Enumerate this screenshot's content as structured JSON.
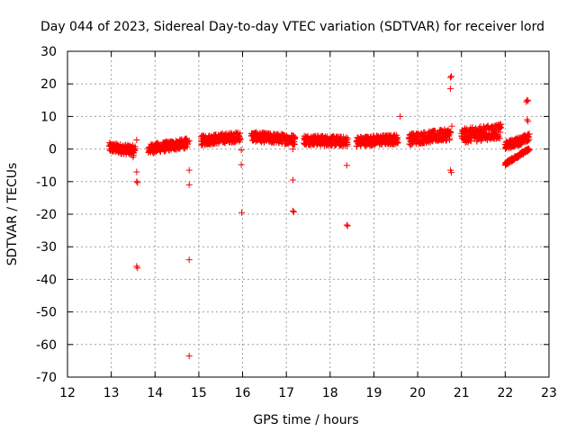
{
  "chart_data": {
    "type": "scatter",
    "title": "Day 044 of 2023, Sidereal Day-to-day VTEC variation (SDTVAR) for receiver lord",
    "xlabel": "GPS time / hours",
    "ylabel": "SDTVAR / TECUs",
    "xlim": [
      12,
      23
    ],
    "ylim": [
      -70,
      30
    ],
    "xticks": [
      12,
      13,
      14,
      15,
      16,
      17,
      18,
      19,
      20,
      21,
      22,
      23
    ],
    "yticks": [
      -70,
      -60,
      -50,
      -40,
      -30,
      -20,
      -10,
      0,
      10,
      20,
      30
    ],
    "grid": true,
    "marker": "+",
    "color": "#ff0000",
    "segments": [
      {
        "x_start": 12.95,
        "x_end": 13.55,
        "y_start": 0.5,
        "y_end": -0.5,
        "spread": 3.0
      },
      {
        "x_start": 13.85,
        "x_end": 14.75,
        "y_start": 0.0,
        "y_end": 1.8,
        "spread": 3.0
      },
      {
        "x_start": 15.05,
        "x_end": 15.95,
        "y_start": 2.6,
        "y_end": 3.8,
        "spread": 3.0
      },
      {
        "x_start": 16.2,
        "x_end": 17.2,
        "y_start": 3.8,
        "y_end": 2.8,
        "spread": 3.0
      },
      {
        "x_start": 17.4,
        "x_end": 18.4,
        "y_start": 2.8,
        "y_end": 2.3,
        "spread": 3.0
      },
      {
        "x_start": 18.6,
        "x_end": 19.55,
        "y_start": 2.3,
        "y_end": 3.0,
        "spread": 3.0
      },
      {
        "x_start": 19.8,
        "x_end": 20.75,
        "y_start": 3.0,
        "y_end": 4.5,
        "spread": 3.5
      },
      {
        "x_start": 21.0,
        "x_end": 21.9,
        "y_start": 4.0,
        "y_end": 5.5,
        "spread": 4.5
      },
      {
        "x_start": 22.0,
        "x_end": 22.55,
        "y_start": 1.0,
        "y_end": 3.5,
        "spread": 2.5
      },
      {
        "x_start": 22.0,
        "x_end": 22.55,
        "y_start": -4.5,
        "y_end": 0.0,
        "spread": 1.0
      }
    ],
    "outliers": [
      {
        "x": 13.58,
        "y": 2.8
      },
      {
        "x": 13.58,
        "y": -7.0
      },
      {
        "x": 13.58,
        "y": -10.0
      },
      {
        "x": 13.6,
        "y": -10.3
      },
      {
        "x": 13.58,
        "y": -36.0
      },
      {
        "x": 13.6,
        "y": -36.5
      },
      {
        "x": 13.5,
        "y": -2.5
      },
      {
        "x": 14.78,
        "y": 2.5
      },
      {
        "x": 14.78,
        "y": -6.5
      },
      {
        "x": 14.78,
        "y": -11.0
      },
      {
        "x": 14.78,
        "y": -34.0
      },
      {
        "x": 14.78,
        "y": -63.5
      },
      {
        "x": 15.97,
        "y": -0.3
      },
      {
        "x": 15.97,
        "y": -4.8
      },
      {
        "x": 15.98,
        "y": -19.5
      },
      {
        "x": 17.15,
        "y": 0.0
      },
      {
        "x": 17.15,
        "y": -9.5
      },
      {
        "x": 17.15,
        "y": -19.0
      },
      {
        "x": 17.17,
        "y": -19.3
      },
      {
        "x": 18.38,
        "y": -5.0
      },
      {
        "x": 18.38,
        "y": -23.3
      },
      {
        "x": 18.4,
        "y": -23.6
      },
      {
        "x": 19.6,
        "y": 10.0
      },
      {
        "x": 20.75,
        "y": 22.0
      },
      {
        "x": 20.77,
        "y": 22.3
      },
      {
        "x": 20.75,
        "y": 18.5
      },
      {
        "x": 20.78,
        "y": 7.0
      },
      {
        "x": 20.75,
        "y": -6.5
      },
      {
        "x": 20.77,
        "y": -7.2
      },
      {
        "x": 22.48,
        "y": 14.5
      },
      {
        "x": 22.5,
        "y": 15.0
      },
      {
        "x": 22.52,
        "y": 14.8
      },
      {
        "x": 22.5,
        "y": 9.0
      },
      {
        "x": 22.52,
        "y": 8.5
      }
    ]
  }
}
